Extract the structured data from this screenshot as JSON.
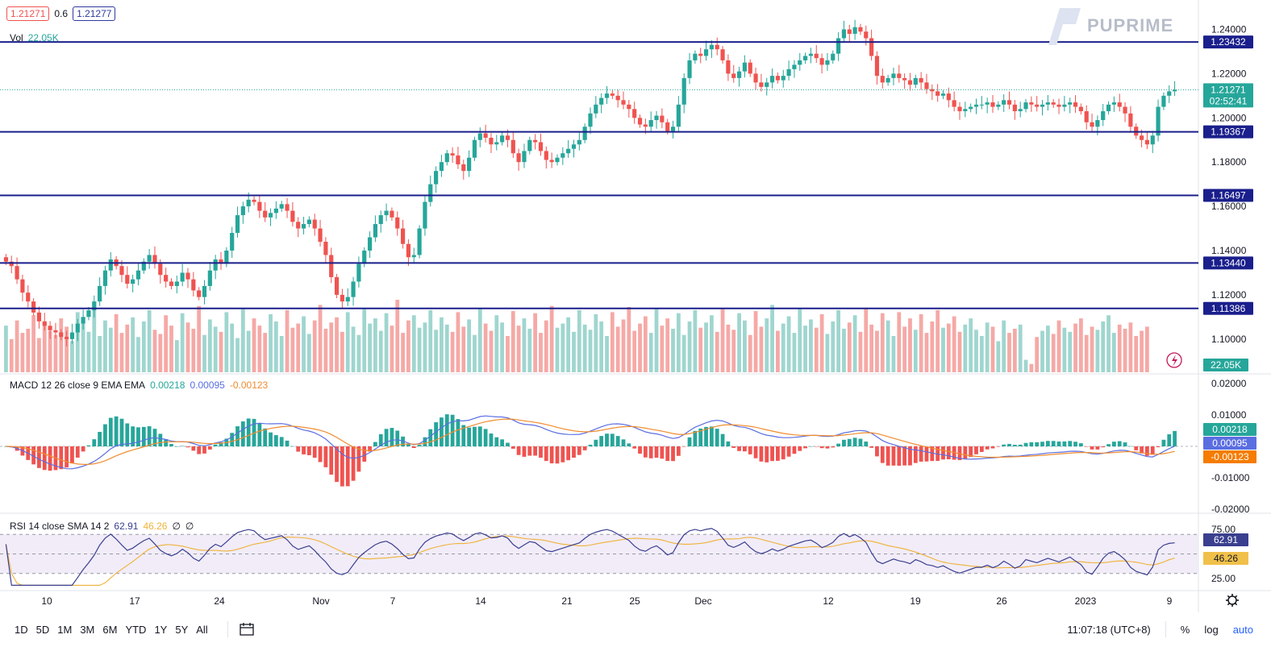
{
  "header": {
    "bid": "1.21271",
    "spread": "0.6",
    "ask": "1.21277",
    "vol_label": "Vol",
    "vol_value": "22.05K"
  },
  "brand": {
    "name": "PUPRIME"
  },
  "colors": {
    "up": "#26a69a",
    "down": "#ef5350",
    "level": "#1a1f8c",
    "macd": "#5b6ee1",
    "signal": "#f08c2e",
    "rsi": "#3a3f8f",
    "rsi_sma": "#f0b23a"
  },
  "price_axis": {
    "ticks": [
      "1.24000",
      "1.22000",
      "1.20000",
      "1.18000",
      "1.16000",
      "1.14000",
      "1.12000",
      "1.10000"
    ]
  },
  "levels": [
    {
      "label": "1.23432",
      "value": 1.23432
    },
    {
      "label": "1.19367",
      "value": 1.19367
    },
    {
      "label": "1.16497",
      "value": 1.16497
    },
    {
      "label": "1.13440",
      "value": 1.1344
    },
    {
      "label": "1.11386",
      "value": 1.11386
    }
  ],
  "last_price": {
    "label": "1.21271",
    "countdown": "02:52:41",
    "value": 1.21271
  },
  "vol_badge": "22.05K",
  "macd": {
    "title": "MACD 12 26 close 9 EMA EMA",
    "v1": "0.00218",
    "v2": "0.00095",
    "v3": "-0.00123",
    "ticks": [
      "0.02000",
      "0.01000",
      "-0.01000",
      "-0.02000"
    ],
    "badges": [
      "0.00218",
      "0.00095",
      "-0.00123"
    ]
  },
  "rsi": {
    "title": "RSI 14 close SMA 14 2",
    "v1": "62.91",
    "v2": "46.26",
    "v3": "∅",
    "v4": "∅",
    "ticks": [
      "75.00",
      "25.00"
    ],
    "badges": [
      "62.91",
      "46.26"
    ],
    "band_upper": 70,
    "band_middle": 50,
    "band_lower": 30
  },
  "time_axis": {
    "labels": [
      "10",
      "17",
      "24",
      "Nov",
      "7",
      "14",
      "21",
      "25",
      "Dec",
      "12",
      "19",
      "26",
      "2023",
      "9"
    ]
  },
  "toolbar": {
    "timeframes": [
      "1D",
      "5D",
      "1M",
      "3M",
      "6M",
      "YTD",
      "1Y",
      "5Y",
      "All"
    ],
    "clock": "11:07:18 (UTC+8)",
    "percent": "%",
    "log": "log",
    "auto": "auto"
  },
  "chart_data": {
    "type": "candlestick",
    "instrument_price": "1.21271",
    "y_range": [
      1.085,
      1.246
    ],
    "close_series": [
      1.135,
      1.133,
      1.127,
      1.121,
      1.117,
      1.112,
      1.108,
      1.106,
      1.104,
      1.103,
      1.101,
      1.1,
      1.103,
      1.107,
      1.11,
      1.113,
      1.117,
      1.124,
      1.131,
      1.136,
      1.133,
      1.129,
      1.125,
      1.127,
      1.131,
      1.135,
      1.138,
      1.134,
      1.129,
      1.126,
      1.124,
      1.126,
      1.13,
      1.127,
      1.122,
      1.119,
      1.124,
      1.131,
      1.136,
      1.134,
      1.14,
      1.148,
      1.156,
      1.16,
      1.163,
      1.162,
      1.158,
      1.155,
      1.157,
      1.159,
      1.161,
      1.158,
      1.153,
      1.15,
      1.152,
      1.154,
      1.15,
      1.144,
      1.138,
      1.128,
      1.12,
      1.117,
      1.119,
      1.126,
      1.134,
      1.14,
      1.146,
      1.152,
      1.156,
      1.158,
      1.155,
      1.15,
      1.143,
      1.137,
      1.138,
      1.15,
      1.162,
      1.17,
      1.176,
      1.18,
      1.184,
      1.183,
      1.179,
      1.176,
      1.182,
      1.19,
      1.193,
      1.191,
      1.188,
      1.189,
      1.192,
      1.19,
      1.184,
      1.18,
      1.185,
      1.19,
      1.189,
      1.185,
      1.181,
      1.18,
      1.182,
      1.184,
      1.186,
      1.188,
      1.19,
      1.196,
      1.202,
      1.206,
      1.209,
      1.211,
      1.21,
      1.208,
      1.206,
      1.204,
      1.2,
      1.197,
      1.196,
      1.199,
      1.201,
      1.198,
      1.194,
      1.196,
      1.206,
      1.218,
      1.226,
      1.229,
      1.228,
      1.231,
      1.233,
      1.231,
      1.226,
      1.22,
      1.218,
      1.221,
      1.225,
      1.22,
      1.216,
      1.214,
      1.216,
      1.219,
      1.217,
      1.219,
      1.222,
      1.224,
      1.226,
      1.228,
      1.229,
      1.227,
      1.224,
      1.226,
      1.229,
      1.236,
      1.24,
      1.238,
      1.241,
      1.239,
      1.236,
      1.228,
      1.219,
      1.216,
      1.218,
      1.22,
      1.218,
      1.217,
      1.215,
      1.218,
      1.216,
      1.213,
      1.212,
      1.21,
      1.211,
      1.208,
      1.205,
      1.203,
      1.204,
      1.205,
      1.206,
      1.206,
      1.207,
      1.205,
      1.206,
      1.208,
      1.206,
      1.203,
      1.204,
      1.207,
      1.206,
      1.205,
      1.206,
      1.207,
      1.206,
      1.205,
      1.206,
      1.207,
      1.205,
      1.203,
      1.198,
      1.196,
      1.199,
      1.203,
      1.206,
      1.207,
      1.205,
      1.202,
      1.196,
      1.192,
      1.19,
      1.188,
      1.192,
      1.205,
      1.21,
      1.212,
      1.2127
    ],
    "volume_series": [
      45,
      32,
      50,
      38,
      42,
      55,
      33,
      48,
      40,
      36,
      52,
      44,
      30,
      58,
      47,
      39,
      61,
      35,
      50,
      43,
      56,
      38,
      46,
      53,
      34,
      49,
      60,
      41,
      37,
      55,
      45,
      31,
      57,
      48,
      42,
      64,
      36,
      51,
      44,
      39,
      58,
      47,
      33,
      62,
      40,
      52,
      45,
      38,
      56,
      49,
      35,
      60,
      43,
      47,
      54,
      37,
      50,
      65,
      42,
      48,
      53,
      39,
      58,
      44,
      36,
      61,
      47,
      52,
      40,
      57,
      45,
      70,
      38,
      50,
      55,
      43,
      48,
      60,
      41,
      53,
      46,
      39,
      58,
      44,
      51,
      36,
      62,
      47,
      40,
      55,
      48,
      35,
      59,
      45,
      52,
      42,
      57,
      38,
      50,
      64,
      43,
      47,
      53,
      39,
      60,
      46,
      41,
      56,
      49,
      35,
      58,
      44,
      51,
      63,
      40,
      47,
      54,
      38,
      61,
      45,
      52,
      42,
      57,
      36,
      49,
      60,
      43,
      48,
      55,
      39,
      62,
      46,
      41,
      57,
      50,
      36,
      59,
      44,
      52,
      65,
      40,
      47,
      54,
      38,
      61,
      45,
      51,
      43,
      56,
      37,
      49,
      60,
      42,
      48,
      55,
      39,
      62,
      46,
      40,
      57,
      50,
      35,
      58,
      44,
      52,
      41,
      56,
      38,
      49,
      60,
      43,
      47,
      54,
      39,
      46,
      52,
      41,
      35,
      48,
      44,
      30,
      50,
      38,
      42,
      46,
      12,
      8,
      34,
      40,
      45,
      37,
      50,
      43,
      39,
      47,
      52,
      36,
      44,
      41,
      49,
      55,
      38,
      46,
      42,
      48,
      35,
      40,
      44
    ],
    "macd_values": [
      "0.00218",
      "0.00095",
      "-0.00123"
    ],
    "rsi_values": [
      "62.91",
      "46.26"
    ]
  }
}
